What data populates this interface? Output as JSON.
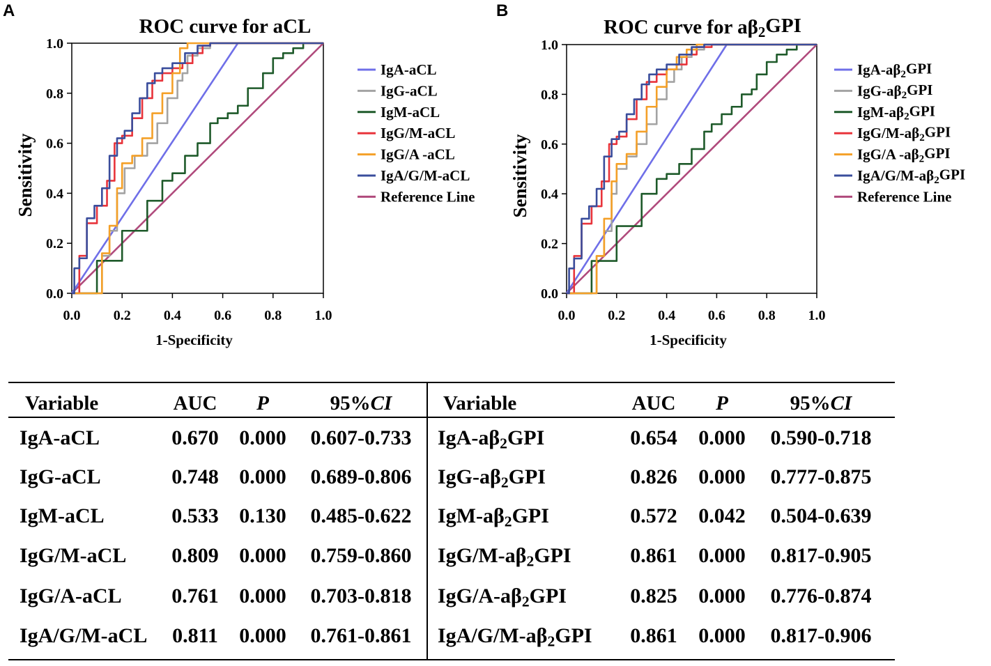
{
  "panels": {
    "a_label": "A",
    "b_label": "B"
  },
  "chart_data": [
    {
      "type": "line",
      "title": "ROC curve for aCL",
      "xlabel": "1-Specificity",
      "ylabel": "Sensitivity",
      "xlim": [
        0,
        1
      ],
      "ylim": [
        0,
        1
      ],
      "xticks": [
        "0.0",
        "0.2",
        "0.4",
        "0.6",
        "0.8",
        "1.0"
      ],
      "yticks": [
        "0.0",
        "0.2",
        "0.4",
        "0.6",
        "0.8",
        "1.0"
      ],
      "legend_position": "right",
      "series": [
        {
          "name": "IgA-aCL",
          "color": "#6f6fe8",
          "x": [
            0,
            0.66,
            1
          ],
          "y": [
            0,
            1,
            1
          ]
        },
        {
          "name": "IgG-aCL",
          "color": "#a3a3a3",
          "x": [
            0,
            0.12,
            0.15,
            0.18,
            0.21,
            0.25,
            0.3,
            0.34,
            0.38,
            0.42,
            0.44,
            0.46,
            0.5,
            0.55,
            0.6,
            1
          ],
          "y": [
            0,
            0.15,
            0.25,
            0.4,
            0.5,
            0.55,
            0.6,
            0.68,
            0.78,
            0.85,
            0.88,
            0.95,
            0.98,
            1,
            1,
            1
          ]
        },
        {
          "name": "IgM-aCL",
          "color": "#1e5a2a",
          "x": [
            0,
            0.1,
            0.2,
            0.3,
            0.36,
            0.4,
            0.45,
            0.5,
            0.55,
            0.58,
            0.62,
            0.66,
            0.7,
            0.74,
            0.76,
            0.8,
            0.84,
            0.88,
            0.92,
            1
          ],
          "y": [
            0,
            0.13,
            0.25,
            0.37,
            0.45,
            0.48,
            0.55,
            0.6,
            0.68,
            0.7,
            0.72,
            0.75,
            0.82,
            0.82,
            0.88,
            0.94,
            0.96,
            0.98,
            1,
            1
          ]
        },
        {
          "name": "IgG/M-aCL",
          "color": "#e8343b",
          "x": [
            0,
            0.03,
            0.06,
            0.1,
            0.14,
            0.17,
            0.2,
            0.24,
            0.28,
            0.32,
            0.36,
            0.4,
            0.44,
            0.48,
            0.52,
            0.55,
            1
          ],
          "y": [
            0,
            0.15,
            0.28,
            0.35,
            0.45,
            0.6,
            0.63,
            0.7,
            0.78,
            0.85,
            0.88,
            0.9,
            0.92,
            0.96,
            0.99,
            1,
            1
          ]
        },
        {
          "name": "IgG/A -aCL",
          "color": "#f4a028",
          "x": [
            0,
            0.12,
            0.15,
            0.18,
            0.2,
            0.24,
            0.28,
            0.32,
            0.36,
            0.4,
            0.43,
            0.46,
            0.5,
            1
          ],
          "y": [
            0,
            0.16,
            0.27,
            0.42,
            0.52,
            0.55,
            0.62,
            0.72,
            0.8,
            0.88,
            0.98,
            1,
            1,
            1
          ]
        },
        {
          "name": "IgA/G/M-aCL",
          "color": "#3a4d9c",
          "x": [
            0,
            0.01,
            0.03,
            0.06,
            0.09,
            0.12,
            0.15,
            0.18,
            0.21,
            0.24,
            0.27,
            0.3,
            0.33,
            0.36,
            0.4,
            0.45,
            0.5,
            0.55,
            0.6,
            1
          ],
          "y": [
            0,
            0.1,
            0.14,
            0.3,
            0.35,
            0.42,
            0.55,
            0.62,
            0.65,
            0.72,
            0.78,
            0.84,
            0.88,
            0.9,
            0.92,
            0.96,
            0.99,
            1,
            1,
            1
          ]
        },
        {
          "name": "Reference Line",
          "color": "#b04a7c",
          "x": [
            0,
            1
          ],
          "y": [
            0,
            1
          ]
        }
      ]
    },
    {
      "type": "line",
      "title": "ROC curve for aβ2GPI",
      "xlabel": "1-Specificity",
      "ylabel": "Sensitivity",
      "xlim": [
        0,
        1
      ],
      "ylim": [
        0,
        1
      ],
      "xticks": [
        "0.0",
        "0.2",
        "0.4",
        "0.6",
        "0.8",
        "1.0"
      ],
      "yticks": [
        "0.0",
        "0.2",
        "0.4",
        "0.6",
        "0.8",
        "1.0"
      ],
      "legend_position": "right",
      "series": [
        {
          "name": "IgA-aβ2GPI",
          "color": "#6f6fe8",
          "x": [
            0,
            0.64,
            1
          ],
          "y": [
            0,
            1,
            1
          ]
        },
        {
          "name": "IgG-aβ2GPI",
          "color": "#a3a3a3",
          "x": [
            0,
            0.12,
            0.15,
            0.18,
            0.2,
            0.24,
            0.28,
            0.32,
            0.36,
            0.4,
            0.43,
            0.46,
            0.5,
            0.55,
            1
          ],
          "y": [
            0,
            0.15,
            0.25,
            0.4,
            0.5,
            0.55,
            0.6,
            0.68,
            0.78,
            0.85,
            0.9,
            0.95,
            0.98,
            1,
            1
          ]
        },
        {
          "name": "IgM-aβ2GPI",
          "color": "#1e5a2a",
          "x": [
            0,
            0.1,
            0.2,
            0.3,
            0.36,
            0.4,
            0.45,
            0.5,
            0.55,
            0.58,
            0.62,
            0.66,
            0.7,
            0.74,
            0.76,
            0.8,
            0.84,
            0.88,
            0.92,
            1
          ],
          "y": [
            0,
            0.13,
            0.27,
            0.4,
            0.46,
            0.48,
            0.52,
            0.58,
            0.65,
            0.68,
            0.72,
            0.75,
            0.8,
            0.82,
            0.88,
            0.93,
            0.96,
            0.98,
            1,
            1
          ]
        },
        {
          "name": "IgG/M-aβ2GPI",
          "color": "#e8343b",
          "x": [
            0,
            0.03,
            0.06,
            0.1,
            0.14,
            0.17,
            0.2,
            0.24,
            0.28,
            0.32,
            0.36,
            0.4,
            0.44,
            0.48,
            0.52,
            0.58,
            1
          ],
          "y": [
            0,
            0.15,
            0.28,
            0.35,
            0.45,
            0.6,
            0.63,
            0.7,
            0.78,
            0.85,
            0.88,
            0.9,
            0.92,
            0.96,
            0.99,
            1,
            1
          ]
        },
        {
          "name": "IgG/A -aβ2GPI",
          "color": "#f4a028",
          "x": [
            0,
            0.12,
            0.15,
            0.18,
            0.2,
            0.24,
            0.28,
            0.32,
            0.36,
            0.4,
            0.44,
            0.48,
            0.52,
            1
          ],
          "y": [
            0,
            0.15,
            0.3,
            0.45,
            0.52,
            0.56,
            0.65,
            0.75,
            0.83,
            0.9,
            0.95,
            0.98,
            1,
            1
          ]
        },
        {
          "name": "IgA/G/M-aβ2GPI",
          "color": "#3a4d9c",
          "x": [
            0,
            0.01,
            0.03,
            0.06,
            0.09,
            0.12,
            0.15,
            0.18,
            0.21,
            0.24,
            0.27,
            0.3,
            0.33,
            0.36,
            0.4,
            0.45,
            0.5,
            0.55,
            0.6,
            1
          ],
          "y": [
            0,
            0.1,
            0.14,
            0.3,
            0.35,
            0.42,
            0.55,
            0.62,
            0.65,
            0.72,
            0.78,
            0.84,
            0.88,
            0.9,
            0.92,
            0.96,
            0.99,
            1,
            1,
            1
          ]
        },
        {
          "name": "Reference Line",
          "color": "#b04a7c",
          "x": [
            0,
            1
          ],
          "y": [
            0,
            1
          ]
        }
      ]
    }
  ],
  "table": {
    "left": {
      "headers": {
        "variable": "Variable",
        "auc": "AUC",
        "p": "P",
        "ci": "95%CI"
      },
      "rows": [
        {
          "variable": "IgA-aCL",
          "auc": "0.670",
          "p": "0.000",
          "ci": "0.607-0.733"
        },
        {
          "variable": "IgG-aCL",
          "auc": "0.748",
          "p": "0.000",
          "ci": "0.689-0.806"
        },
        {
          "variable": "IgM-aCL",
          "auc": "0.533",
          "p": "0.130",
          "ci": "0.485-0.622"
        },
        {
          "variable": "IgG/M-aCL",
          "auc": "0.809",
          "p": "0.000",
          "ci": "0.759-0.860"
        },
        {
          "variable": "IgG/A-aCL",
          "auc": "0.761",
          "p": "0.000",
          "ci": "0.703-0.818"
        },
        {
          "variable": "IgA/G/M-aCL",
          "auc": "0.811",
          "p": "0.000",
          "ci": "0.761-0.861"
        }
      ]
    },
    "right": {
      "headers": {
        "variable": "Variable",
        "auc": "AUC",
        "p": "P",
        "ci": "95%CI"
      },
      "rows": [
        {
          "variable": "IgA-aβ2GPI",
          "auc": "0.654",
          "p": "0.000",
          "ci": "0.590-0.718"
        },
        {
          "variable": "IgG-aβ2GPI",
          "auc": "0.826",
          "p": "0.000",
          "ci": "0.777-0.875"
        },
        {
          "variable": "IgM-aβ2GPI",
          "auc": "0.572",
          "p": "0.042",
          "ci": "0.504-0.639"
        },
        {
          "variable": "IgG/M-aβ2GPI",
          "auc": "0.861",
          "p": "0.000",
          "ci": "0.817-0.905"
        },
        {
          "variable": "IgG/A-aβ2GPI",
          "auc": "0.825",
          "p": "0.000",
          "ci": "0.776-0.874"
        },
        {
          "variable": "IgA/G/M-aβ2GPI",
          "auc": "0.861",
          "p": "0.000",
          "ci": "0.817-0.906"
        }
      ]
    }
  }
}
